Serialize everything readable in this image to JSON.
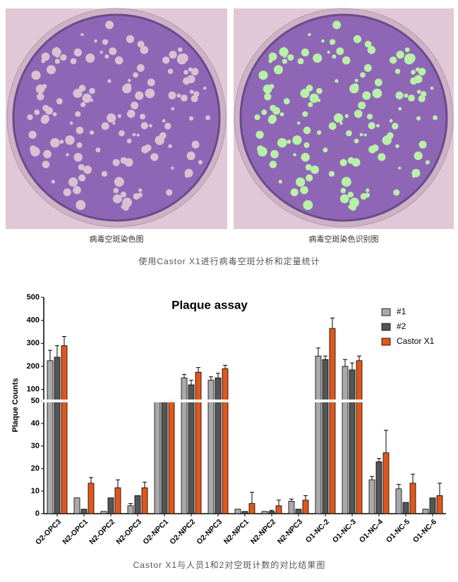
{
  "images": {
    "left_caption": "病毒空斑染色图",
    "right_caption": "病毒空斑染色识别图"
  },
  "caption_top": "使用Castor X1进行病毒空斑分析和定量统计",
  "caption_bottom": "Castor X1与人员1和2对空斑计数的对比结果图",
  "chart_data": {
    "type": "bar",
    "title": "Plaque assay",
    "y_label": "Plaque Counts",
    "categories": [
      "O2-OPC3",
      "N2-OPC1",
      "N2-OPC2",
      "N2-OPC3",
      "O2-NPC1",
      "O2-NPC2",
      "O2-NPC3",
      "N2-NPC1",
      "N2-NPC2",
      "N2-NPC3",
      "O1-NC-2",
      "O1-NC-3",
      "O1-NC-4",
      "O1-NC-5",
      "O1-NC-6"
    ],
    "series": [
      {
        "name": "#1",
        "color": "#a9a9a9",
        "values": [
          225,
          7,
          1,
          3.5,
          51,
          150,
          140,
          2,
          1,
          5.5,
          245,
          200,
          15,
          11,
          2
        ],
        "errors": [
          45,
          0,
          0,
          1,
          0,
          15,
          15,
          0,
          0,
          1,
          35,
          30,
          1.5,
          2,
          0
        ]
      },
      {
        "name": "#2",
        "color": "#555555",
        "values": [
          240,
          2,
          7,
          8,
          52,
          120,
          150,
          1,
          1,
          2,
          230,
          185,
          23,
          5,
          7
        ],
        "errors": [
          50,
          0,
          0,
          0,
          0,
          20,
          20,
          0,
          0.5,
          0,
          15,
          30,
          1.5,
          0,
          0
        ]
      },
      {
        "name": "Castor X1",
        "color": "#e0571c",
        "values": [
          290,
          13.5,
          11.5,
          11.5,
          55,
          175,
          190,
          4.5,
          3.5,
          6,
          365,
          225,
          27,
          13.5,
          8
        ],
        "errors": [
          40,
          2.5,
          3.5,
          2.5,
          0,
          20,
          15,
          5,
          2.5,
          2,
          45,
          20,
          10,
          4,
          5.5
        ]
      }
    ],
    "ylim": [
      0,
      500
    ],
    "ybreak": 50,
    "yticks": [
      0,
      10,
      20,
      30,
      40,
      50,
      100,
      200,
      300,
      400,
      500
    ]
  }
}
